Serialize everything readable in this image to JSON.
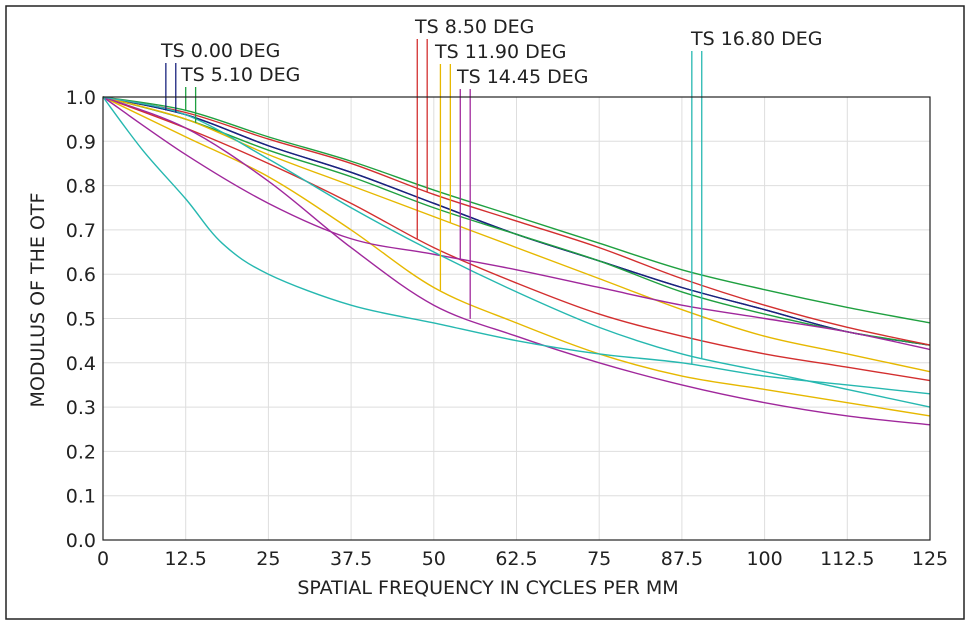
{
  "chart_data": {
    "type": "line",
    "xlabel": "SPATIAL FREQUENCY IN CYCLES PER MM",
    "ylabel": "MODULUS OF THE OTF",
    "xlim": [
      0,
      125
    ],
    "ylim": [
      0,
      1
    ],
    "xticks": [
      "0",
      "12.5",
      "25",
      "37.5",
      "50",
      "62.5",
      "75",
      "87.5",
      "100",
      "112.5",
      "125"
    ],
    "yticks": [
      "0.0",
      "0.1",
      "0.2",
      "0.3",
      "0.4",
      "0.5",
      "0.6",
      "0.7",
      "0.8",
      "0.9",
      "1.0"
    ],
    "grid": true,
    "fields": [
      {
        "label": "TS 0.00 DEG",
        "color": "#1a237e",
        "t_freq": 9.5,
        "s_freq": 11.0,
        "tangential": [
          [
            0,
            1.0
          ],
          [
            12.5,
            0.96
          ],
          [
            25,
            0.89
          ],
          [
            37.5,
            0.83
          ],
          [
            50,
            0.76
          ],
          [
            62.5,
            0.69
          ],
          [
            75,
            0.63
          ],
          [
            87.5,
            0.57
          ],
          [
            100,
            0.52
          ],
          [
            112.5,
            0.47
          ],
          [
            125,
            0.44
          ]
        ],
        "sagittal": [
          [
            0,
            1.0
          ],
          [
            12.5,
            0.96
          ],
          [
            25,
            0.89
          ],
          [
            37.5,
            0.83
          ],
          [
            50,
            0.76
          ],
          [
            62.5,
            0.69
          ],
          [
            75,
            0.63
          ],
          [
            87.5,
            0.57
          ],
          [
            100,
            0.52
          ],
          [
            112.5,
            0.47
          ],
          [
            125,
            0.44
          ]
        ]
      },
      {
        "label": "TS 5.10 DEG",
        "color": "#1fa040",
        "t_freq": 12.5,
        "s_freq": 14.0,
        "tangential": [
          [
            0,
            1.0
          ],
          [
            12.5,
            0.97
          ],
          [
            25,
            0.91
          ],
          [
            37.5,
            0.855
          ],
          [
            50,
            0.79
          ],
          [
            62.5,
            0.73
          ],
          [
            75,
            0.67
          ],
          [
            87.5,
            0.61
          ],
          [
            100,
            0.565
          ],
          [
            112.5,
            0.525
          ],
          [
            125,
            0.49
          ]
        ],
        "sagittal": [
          [
            0,
            1.0
          ],
          [
            12.5,
            0.95
          ],
          [
            25,
            0.88
          ],
          [
            37.5,
            0.82
          ],
          [
            50,
            0.75
          ],
          [
            62.5,
            0.69
          ],
          [
            75,
            0.63
          ],
          [
            87.5,
            0.56
          ],
          [
            100,
            0.51
          ],
          [
            112.5,
            0.47
          ],
          [
            125,
            0.44
          ]
        ]
      },
      {
        "label": "TS 8.50 DEG",
        "color": "#d32f2f",
        "t_freq": 47.5,
        "s_freq": 49.0,
        "tangential": [
          [
            0,
            1.0
          ],
          [
            12.5,
            0.93
          ],
          [
            25,
            0.85
          ],
          [
            37.5,
            0.76
          ],
          [
            50,
            0.66
          ],
          [
            62.5,
            0.58
          ],
          [
            75,
            0.51
          ],
          [
            87.5,
            0.46
          ],
          [
            100,
            0.42
          ],
          [
            112.5,
            0.39
          ],
          [
            125,
            0.36
          ]
        ],
        "sagittal": [
          [
            0,
            1.0
          ],
          [
            12.5,
            0.965
          ],
          [
            25,
            0.905
          ],
          [
            37.5,
            0.85
          ],
          [
            50,
            0.78
          ],
          [
            62.5,
            0.72
          ],
          [
            75,
            0.66
          ],
          [
            87.5,
            0.59
          ],
          [
            100,
            0.53
          ],
          [
            112.5,
            0.48
          ],
          [
            125,
            0.44
          ]
        ]
      },
      {
        "label": "TS 11.90 DEG",
        "color": "#e6b800",
        "t_freq": 51.0,
        "s_freq": 52.5,
        "tangential": [
          [
            0,
            1.0
          ],
          [
            12.5,
            0.91
          ],
          [
            25,
            0.82
          ],
          [
            37.5,
            0.7
          ],
          [
            50,
            0.57
          ],
          [
            62.5,
            0.49
          ],
          [
            75,
            0.42
          ],
          [
            87.5,
            0.37
          ],
          [
            100,
            0.34
          ],
          [
            112.5,
            0.31
          ],
          [
            125,
            0.28
          ]
        ],
        "sagittal": [
          [
            0,
            1.0
          ],
          [
            12.5,
            0.95
          ],
          [
            25,
            0.87
          ],
          [
            37.5,
            0.8
          ],
          [
            50,
            0.73
          ],
          [
            62.5,
            0.66
          ],
          [
            75,
            0.59
          ],
          [
            87.5,
            0.52
          ],
          [
            100,
            0.46
          ],
          [
            112.5,
            0.42
          ],
          [
            125,
            0.38
          ]
        ]
      },
      {
        "label": "TS 14.45 DEG",
        "color": "#a0289c",
        "t_freq": 54.0,
        "s_freq": 55.5,
        "tangential": [
          [
            0,
            1.0
          ],
          [
            12.5,
            0.87
          ],
          [
            25,
            0.76
          ],
          [
            37.5,
            0.68
          ],
          [
            50,
            0.645
          ],
          [
            62.5,
            0.61
          ],
          [
            75,
            0.57
          ],
          [
            87.5,
            0.53
          ],
          [
            100,
            0.5
          ],
          [
            112.5,
            0.47
          ],
          [
            125,
            0.43
          ]
        ],
        "sagittal": [
          [
            0,
            1.0
          ],
          [
            12.5,
            0.93
          ],
          [
            25,
            0.81
          ],
          [
            37.5,
            0.66
          ],
          [
            50,
            0.53
          ],
          [
            62.5,
            0.46
          ],
          [
            75,
            0.4
          ],
          [
            87.5,
            0.35
          ],
          [
            100,
            0.31
          ],
          [
            112.5,
            0.28
          ],
          [
            125,
            0.26
          ]
        ]
      },
      {
        "label": "TS 16.80 DEG",
        "color": "#26b8b0",
        "t_freq": 89.0,
        "s_freq": 90.5,
        "tangential": [
          [
            0,
            1.0
          ],
          [
            6,
            0.88
          ],
          [
            12.5,
            0.77
          ],
          [
            18,
            0.67
          ],
          [
            25,
            0.6
          ],
          [
            37.5,
            0.53
          ],
          [
            50,
            0.49
          ],
          [
            62.5,
            0.45
          ],
          [
            75,
            0.42
          ],
          [
            87.5,
            0.4
          ],
          [
            100,
            0.37
          ],
          [
            112.5,
            0.35
          ],
          [
            125,
            0.33
          ]
        ],
        "sagittal": [
          [
            0,
            1.0
          ],
          [
            12.5,
            0.96
          ],
          [
            25,
            0.86
          ],
          [
            37.5,
            0.75
          ],
          [
            50,
            0.65
          ],
          [
            62.5,
            0.56
          ],
          [
            75,
            0.48
          ],
          [
            87.5,
            0.42
          ],
          [
            100,
            0.38
          ],
          [
            112.5,
            0.34
          ],
          [
            125,
            0.3
          ]
        ]
      }
    ]
  }
}
